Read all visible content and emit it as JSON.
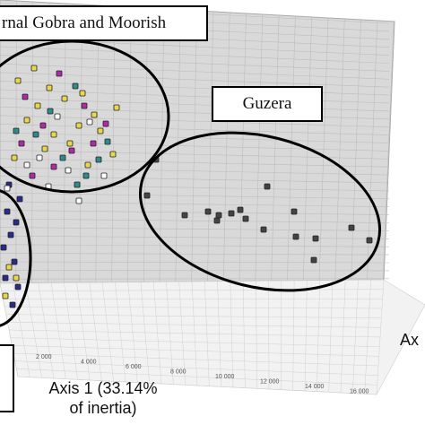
{
  "chart_data": {
    "type": "scatter",
    "title": "",
    "annotations": [
      "rnal Gobra and Moorish",
      "Guzera"
    ],
    "xlabel_lines": [
      "Axis 1 (33.14%",
      "of inertia)"
    ],
    "ylabel_partial": "Ax",
    "x_ticks": [
      "2 000",
      "4 000",
      "6 000",
      "8 000",
      "10 000",
      "12 000",
      "14 000",
      "16 000"
    ],
    "grid": true,
    "series": [
      {
        "color": "#e8d84a",
        "points": [
          [
            38,
            76
          ],
          [
            20,
            90
          ],
          [
            55,
            98
          ],
          [
            72,
            110
          ],
          [
            92,
            104
          ],
          [
            130,
            120
          ],
          [
            105,
            128
          ],
          [
            42,
            118
          ],
          [
            88,
            140
          ],
          [
            60,
            150
          ],
          [
            30,
            134
          ],
          [
            112,
            146
          ],
          [
            78,
            160
          ],
          [
            50,
            166
          ],
          [
            16,
            176
          ],
          [
            126,
            172
          ],
          [
            98,
            184
          ]
        ]
      },
      {
        "color": "#b02aa8",
        "points": [
          [
            66,
            82
          ],
          [
            28,
            108
          ],
          [
            94,
            118
          ],
          [
            118,
            138
          ],
          [
            48,
            140
          ],
          [
            80,
            168
          ],
          [
            104,
            160
          ],
          [
            24,
            160
          ],
          [
            60,
            186
          ],
          [
            36,
            196
          ]
        ]
      },
      {
        "color": "#2e8b8b",
        "points": [
          [
            84,
            96
          ],
          [
            56,
            124
          ],
          [
            120,
            158
          ],
          [
            40,
            150
          ],
          [
            70,
            176
          ],
          [
            96,
            196
          ],
          [
            18,
            146
          ],
          [
            110,
            178
          ],
          [
            86,
            206
          ]
        ]
      },
      {
        "color": "#2a2a8c",
        "points": [
          [
            10,
            206
          ],
          [
            22,
            222
          ],
          [
            8,
            236
          ],
          [
            18,
            248
          ],
          [
            12,
            262
          ],
          [
            4,
            276
          ],
          [
            16,
            292
          ],
          [
            6,
            310
          ],
          [
            20,
            320
          ],
          [
            14,
            340
          ]
        ]
      },
      {
        "color": "#ffffff",
        "points": [
          [
            64,
            130
          ],
          [
            100,
            136
          ],
          [
            44,
            176
          ],
          [
            76,
            190
          ],
          [
            116,
            196
          ],
          [
            30,
            184
          ],
          [
            88,
            224
          ],
          [
            54,
            208
          ],
          [
            8,
            210
          ]
        ]
      },
      {
        "color": "#444444",
        "points": [
          [
            174,
            178
          ],
          [
            164,
            218
          ],
          [
            206,
            240
          ],
          [
            232,
            236
          ],
          [
            244,
            240
          ],
          [
            258,
            238
          ],
          [
            268,
            234
          ],
          [
            298,
            208
          ],
          [
            328,
            236
          ],
          [
            274,
            244
          ],
          [
            242,
            246
          ],
          [
            294,
            256
          ],
          [
            330,
            264
          ],
          [
            352,
            266
          ],
          [
            392,
            254
          ],
          [
            412,
            268
          ],
          [
            350,
            290
          ]
        ]
      },
      {
        "color": "#e8d84a",
        "points": [
          [
            6,
            330
          ],
          [
            18,
            310
          ],
          [
            10,
            298
          ]
        ]
      }
    ]
  }
}
